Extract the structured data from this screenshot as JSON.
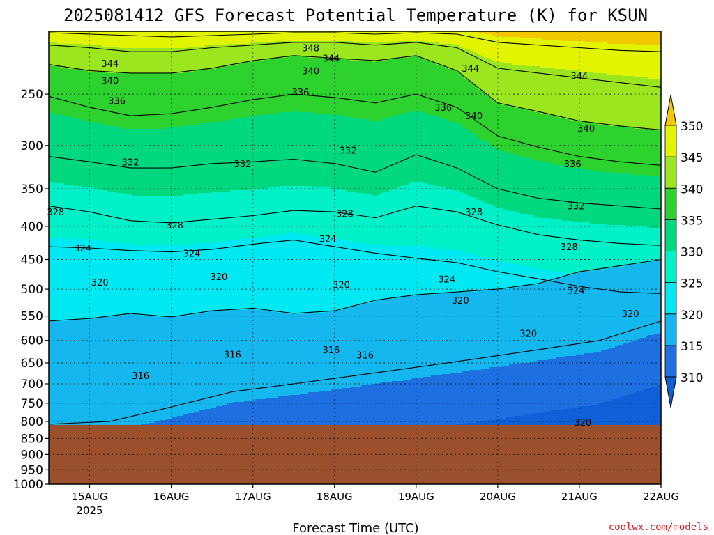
{
  "chart_data": {
    "type": "heatmap",
    "title": "2025081412 GFS Forecast Potential Temperature (K) for KSUN",
    "xlabel": "Forecast Time (UTC)",
    "ylabel": "",
    "watermark": "coolwx.com/models",
    "y_axis": {
      "scale": "log",
      "range": [
        1000,
        200
      ],
      "ticks": [
        250,
        300,
        350,
        400,
        450,
        500,
        550,
        600,
        650,
        700,
        750,
        800,
        850,
        900,
        950,
        1000
      ]
    },
    "x_axis": {
      "range": [
        "2025-08-14T12Z",
        "2025-08-22T00Z"
      ],
      "ticks": [
        {
          "label": "15AUG",
          "sub": "2025",
          "t": "2025-08-15T00Z"
        },
        {
          "label": "16AUG",
          "sub": "",
          "t": "2025-08-16T00Z"
        },
        {
          "label": "17AUG",
          "sub": "",
          "t": "2025-08-17T00Z"
        },
        {
          "label": "18AUG",
          "sub": "",
          "t": "2025-08-18T00Z"
        },
        {
          "label": "19AUG",
          "sub": "",
          "t": "2025-08-19T00Z"
        },
        {
          "label": "20AUG",
          "sub": "",
          "t": "2025-08-20T00Z"
        },
        {
          "label": "21AUG",
          "sub": "",
          "t": "2025-08-21T00Z"
        },
        {
          "label": "22AUG",
          "sub": "",
          "t": "2025-08-22T00Z"
        }
      ]
    },
    "surface_pressure_hpa": 810,
    "grid": true,
    "colorbar": {
      "levels": [
        310,
        315,
        320,
        325,
        330,
        335,
        340,
        345,
        350
      ],
      "colors": [
        "#1e6fe0",
        "#15b8ee",
        "#00e8f2",
        "#00f0c8",
        "#00d880",
        "#2ed22e",
        "#9be61e",
        "#e2f400",
        "#f2c800"
      ],
      "below_color": "#0f5fd8",
      "above_color": "#f2c800"
    },
    "contour_interval": 4,
    "series": [
      {
        "name": "316",
        "pressure": [
          808,
          800,
          760,
          720,
          700,
          680,
          660,
          640,
          620,
          600,
          560
        ]
      },
      {
        "name": "320",
        "pressure": [
          560,
          555,
          545,
          552,
          540,
          535,
          545,
          540,
          520,
          510,
          505,
          500,
          490,
          470,
          460,
          450
        ]
      },
      {
        "name": "324",
        "pressure": [
          430,
          432,
          436,
          438,
          434,
          426,
          420,
          430,
          440,
          448,
          455,
          470,
          482,
          495,
          505,
          508
        ]
      },
      {
        "name": "328",
        "pressure": [
          372,
          380,
          392,
          395,
          390,
          385,
          378,
          380,
          388,
          372,
          380,
          398,
          412,
          420,
          425,
          428
        ]
      },
      {
        "name": "332",
        "pressure": [
          312,
          318,
          325,
          325,
          320,
          318,
          315,
          320,
          330,
          310,
          325,
          350,
          362,
          368,
          372,
          376
        ]
      },
      {
        "name": "336",
        "pressure": [
          252,
          262,
          270,
          268,
          262,
          255,
          250,
          253,
          258,
          250,
          262,
          290,
          302,
          312,
          318,
          322
        ]
      },
      {
        "name": "340",
        "pressure": [
          225,
          230,
          232,
          232,
          228,
          222,
          218,
          220,
          222,
          218,
          230,
          258,
          266,
          275,
          280,
          284
        ]
      },
      {
        "name": "344",
        "pressure": [
          210,
          212,
          215,
          215,
          212,
          210,
          208,
          208,
          210,
          208,
          212,
          228,
          232,
          236,
          240,
          244
        ]
      },
      {
        "name": "348",
        "pressure": [
          201,
          202,
          203,
          204,
          203,
          202,
          201,
          201,
          202,
          201,
          202,
          208,
          210,
          212,
          214,
          215
        ]
      }
    ],
    "contour_labels": [
      {
        "text": "344",
        "t": "2025-08-15T06Z",
        "p": 224
      },
      {
        "text": "340",
        "t": "2025-08-15T06Z",
        "p": 238
      },
      {
        "text": "336",
        "t": "2025-08-15T08Z",
        "p": 256
      },
      {
        "text": "332",
        "t": "2025-08-15T12Z",
        "p": 318
      },
      {
        "text": "328",
        "t": "2025-08-14T14Z",
        "p": 380
      },
      {
        "text": "324",
        "t": "2025-08-14T22Z",
        "p": 432
      },
      {
        "text": "320",
        "t": "2025-08-15T03Z",
        "p": 488
      },
      {
        "text": "316",
        "t": "2025-08-15T15Z",
        "p": 680
      },
      {
        "text": "328",
        "t": "2025-08-16T01Z",
        "p": 398
      },
      {
        "text": "324",
        "t": "2025-08-16T06Z",
        "p": 440
      },
      {
        "text": "332",
        "t": "2025-08-16T21Z",
        "p": 320
      },
      {
        "text": "320",
        "t": "2025-08-16T14Z",
        "p": 478
      },
      {
        "text": "316",
        "t": "2025-08-16T18Z",
        "p": 630
      },
      {
        "text": "348",
        "t": "2025-08-17T17Z",
        "p": 212
      },
      {
        "text": "344",
        "t": "2025-08-17T23Z",
        "p": 220
      },
      {
        "text": "340",
        "t": "2025-08-17T17Z",
        "p": 230
      },
      {
        "text": "336",
        "t": "2025-08-17T14Z",
        "p": 248
      },
      {
        "text": "316",
        "t": "2025-08-17T23Z",
        "p": 620
      },
      {
        "text": "324",
        "t": "2025-08-17T22Z",
        "p": 418
      },
      {
        "text": "328",
        "t": "2025-08-18T03Z",
        "p": 382
      },
      {
        "text": "332",
        "t": "2025-08-18T04Z",
        "p": 305
      },
      {
        "text": "320",
        "t": "2025-08-18T02Z",
        "p": 492
      },
      {
        "text": "316",
        "t": "2025-08-18T09Z",
        "p": 632
      },
      {
        "text": "336",
        "t": "2025-08-19T08Z",
        "p": 262
      },
      {
        "text": "340",
        "t": "2025-08-19T17Z",
        "p": 270
      },
      {
        "text": "344",
        "t": "2025-08-19T16Z",
        "p": 228
      },
      {
        "text": "328",
        "t": "2025-08-19T17Z",
        "p": 380
      },
      {
        "text": "324",
        "t": "2025-08-19T09Z",
        "p": 482
      },
      {
        "text": "320",
        "t": "2025-08-19T13Z",
        "p": 520
      },
      {
        "text": "320",
        "t": "2025-08-20T09Z",
        "p": 585
      },
      {
        "text": "344",
        "t": "2025-08-21T00Z",
        "p": 234
      },
      {
        "text": "340",
        "t": "2025-08-21T02Z",
        "p": 282
      },
      {
        "text": "336",
        "t": "2025-08-20T22Z",
        "p": 320
      },
      {
        "text": "332",
        "t": "2025-08-20T23Z",
        "p": 372
      },
      {
        "text": "328",
        "t": "2025-08-20T21Z",
        "p": 430
      },
      {
        "text": "324",
        "t": "2025-08-20T23Z",
        "p": 502
      },
      {
        "text": "320",
        "t": "2025-08-21T15Z",
        "p": 545
      },
      {
        "text": "320",
        "t": "2025-08-21T01Z",
        "p": 802
      }
    ]
  }
}
